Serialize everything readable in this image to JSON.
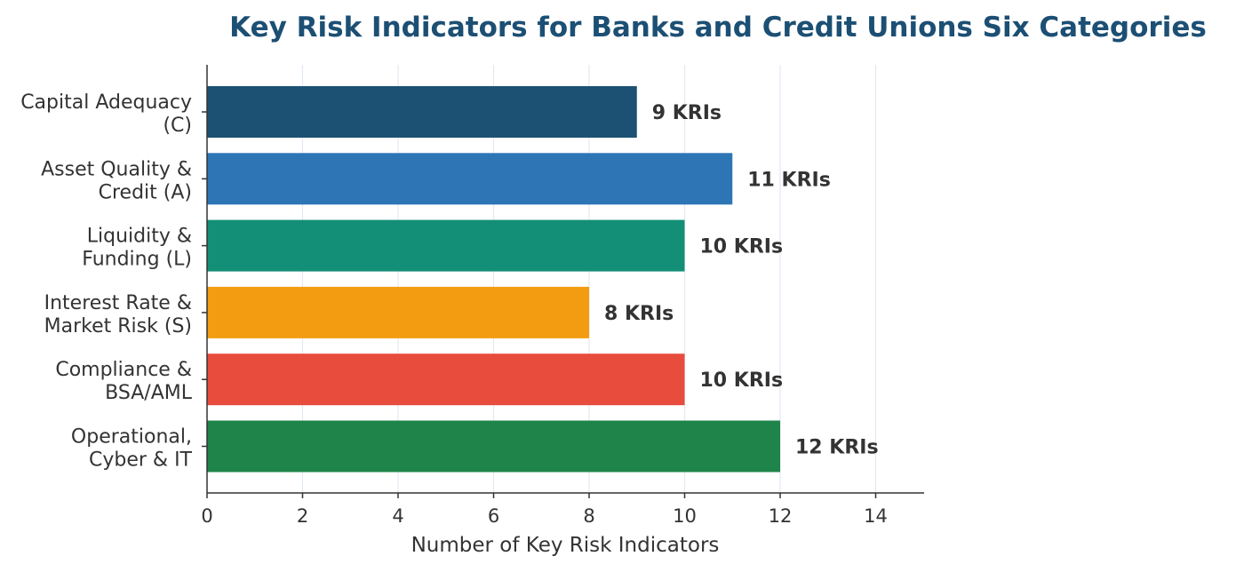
{
  "chart_data": {
    "type": "bar",
    "orientation": "horizontal",
    "title": "Key Risk Indicators for Banks and Credit Unions  Six Categories",
    "xlabel": "Number of Key Risk Indicators",
    "ylabel": "",
    "xlim": [
      0,
      15
    ],
    "xticks": [
      "0",
      "2",
      "4",
      "6",
      "8",
      "10",
      "12",
      "14"
    ],
    "grid": "vertical",
    "categories": [
      [
        "Capital Adequacy",
        "(C)"
      ],
      [
        "Asset Quality &",
        "Credit (A)"
      ],
      [
        "Liquidity &",
        "Funding (L)"
      ],
      [
        "Interest Rate &",
        "Market Risk (S)"
      ],
      [
        "Compliance &",
        "BSA/AML"
      ],
      [
        "Operational,",
        "Cyber & IT"
      ]
    ],
    "values": [
      9,
      11,
      10,
      8,
      10,
      12
    ],
    "data_labels": [
      "9 KRIs",
      "11 KRIs",
      "10 KRIs",
      "8 KRIs",
      "10 KRIs",
      "12 KRIs"
    ],
    "colors": [
      "#1c5174",
      "#2e75b6",
      "#148f77",
      "#f39c12",
      "#e74c3c",
      "#1e8449"
    ]
  }
}
